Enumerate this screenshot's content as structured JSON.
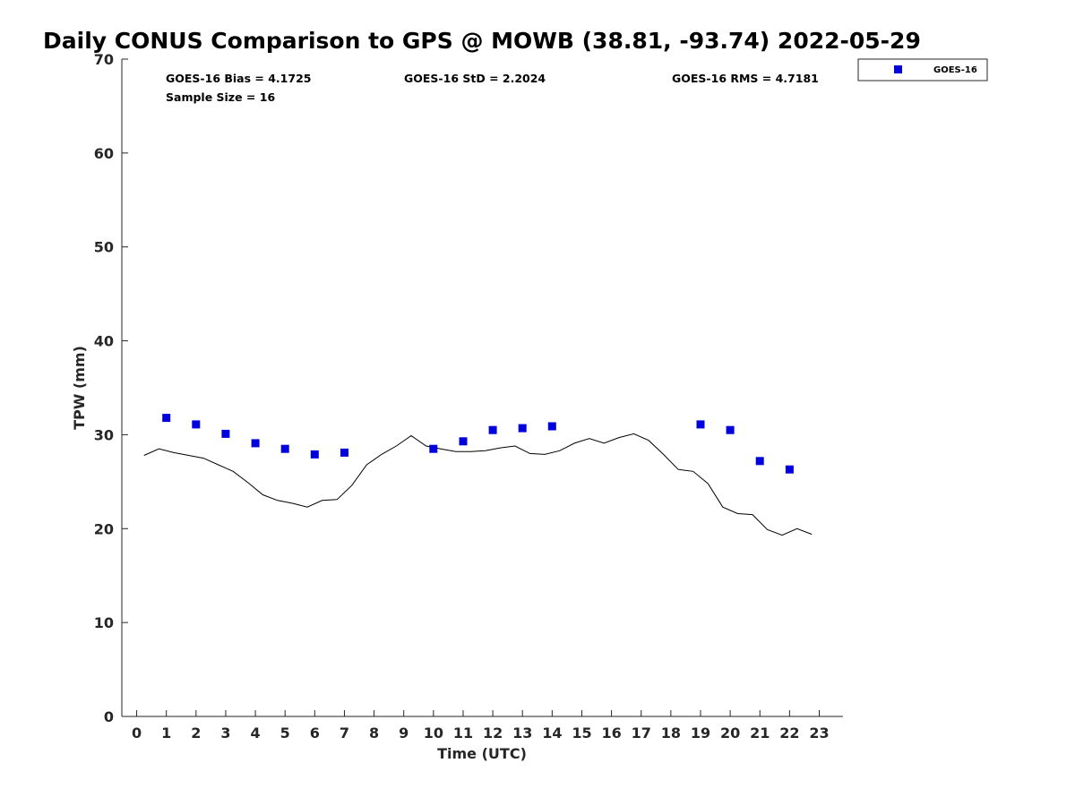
{
  "chart_data": {
    "type": "scatter",
    "title": "Daily CONUS Comparison to GPS @ MOWB (38.81, -93.74) 2022-05-29",
    "xlabel": "Time (UTC)",
    "ylabel": "TPW (mm)",
    "xlim": [
      -0.5,
      23.8
    ],
    "ylim": [
      0,
      70
    ],
    "x_ticks": [
      "0",
      "1",
      "2",
      "3",
      "4",
      "5",
      "6",
      "7",
      "8",
      "9",
      "10",
      "11",
      "12",
      "13",
      "14",
      "15",
      "16",
      "17",
      "18",
      "19",
      "20",
      "21",
      "22",
      "23"
    ],
    "y_ticks": [
      "0",
      "10",
      "20",
      "30",
      "40",
      "50",
      "60",
      "70"
    ],
    "grid": false,
    "legend_position": "top-right, outside plot",
    "stats": {
      "bias": "GOES-16 Bias = 4.1725",
      "sample_size": "Sample Size = 16",
      "std": "GOES-16 StD = 2.2024",
      "rms": "GOES-16 RMS = 4.7181"
    },
    "series": [
      {
        "name": "GOES-16",
        "kind": "scatter",
        "color": "#0000dd",
        "marker": "square",
        "x": [
          1,
          2,
          3,
          4,
          5,
          6,
          7,
          10,
          11,
          12,
          13,
          14,
          19,
          20,
          21,
          22
        ],
        "y": [
          31.8,
          31.1,
          30.1,
          29.1,
          28.5,
          27.9,
          28.1,
          28.5,
          29.3,
          30.5,
          30.7,
          30.9,
          31.1,
          30.5,
          27.2,
          26.3
        ]
      },
      {
        "kind": "line",
        "color": "#000000",
        "x": [
          0.25,
          0.75,
          1.25,
          1.75,
          2.25,
          2.75,
          3.25,
          3.75,
          4.25,
          4.75,
          5.25,
          5.75,
          6.25,
          6.75,
          7.25,
          7.75,
          8.25,
          8.75,
          9.25,
          9.75,
          10.25,
          10.75,
          11.25,
          11.75,
          12.25,
          12.75,
          13.25,
          13.75,
          14.25,
          14.75,
          15.25,
          15.75,
          16.25,
          16.75,
          17.25,
          17.75,
          18.25,
          18.75,
          19.25,
          19.75,
          20.25,
          20.75,
          21.25,
          21.75,
          22.25,
          22.75
        ],
        "y": [
          27.8,
          28.5,
          28.1,
          27.8,
          27.5,
          26.8,
          26.1,
          24.9,
          23.6,
          23.0,
          22.7,
          22.3,
          23.0,
          23.1,
          24.6,
          26.8,
          27.9,
          28.8,
          29.9,
          28.8,
          28.5,
          28.2,
          28.2,
          28.3,
          28.6,
          28.8,
          28.0,
          27.9,
          28.3,
          29.1,
          29.6,
          29.1,
          29.7,
          30.1,
          29.4,
          27.9,
          26.3,
          26.1,
          24.8,
          22.3,
          21.6,
          21.5,
          19.9,
          19.3,
          20.0,
          19.4
        ]
      }
    ]
  }
}
